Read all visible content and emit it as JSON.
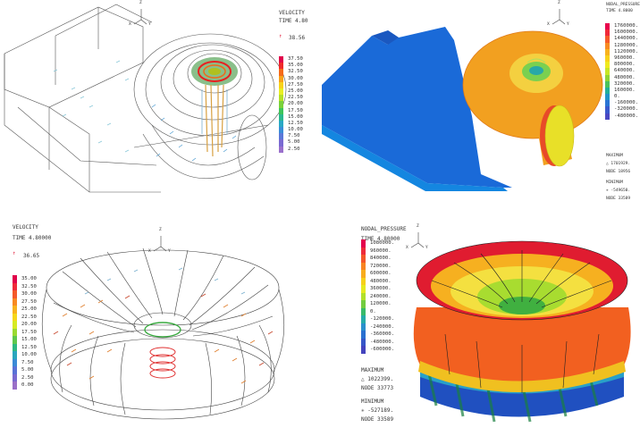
{
  "panels": {
    "velocity_top": {
      "title": "VELOCITY",
      "time": "TIME 4.80",
      "max_marker": "38.56",
      "legend": [
        "37.50",
        "35.00",
        "32.50",
        "30.00",
        "27.50",
        "25.00",
        "22.50",
        "20.00",
        "17.50",
        "15.00",
        "12.50",
        "10.00",
        "7.50",
        "5.00",
        "2.50"
      ],
      "legend_colors": [
        "#e0004a",
        "#ef2a2a",
        "#f56a1a",
        "#f8a21a",
        "#f8d21a",
        "#e8ee22",
        "#b6e026",
        "#7ad23a",
        "#3ec45a",
        "#2ab88e",
        "#2aa8c4",
        "#3a8ed8",
        "#5a78d8",
        "#7a6ad2",
        "#9a70cc"
      ]
    },
    "pressure_top": {
      "title": "NODAL_PRESSURE",
      "time": "TIME 4.8000",
      "legend": [
        "1760000.",
        "1600000.",
        "1440000.",
        "1280000.",
        "1120000.",
        "960000.",
        "800000.",
        "640000.",
        "480000.",
        "320000.",
        "160000.",
        "0.",
        "-160000.",
        "-320000.",
        "-480000."
      ],
      "legend_colors": [
        "#e8004c",
        "#f02a3a",
        "#f65a2a",
        "#f88a22",
        "#f8b21e",
        "#f8d21a",
        "#f0ea20",
        "#c8e626",
        "#8ed436",
        "#4cc25c",
        "#22b09a",
        "#2294c8",
        "#2a74d4",
        "#3a58cc",
        "#4a48c2"
      ],
      "maximum_label": "MAXIMUM",
      "maximum_value": "△  1701929.",
      "maximum_node": "NODE 18956",
      "minimum_label": "MINIMUM",
      "minimum_value": "✳ -549650.",
      "minimum_node": "NODE 33589"
    },
    "velocity_bottom": {
      "title": "VELOCITY",
      "time": "TIME 4.80000",
      "max_marker": "36.65",
      "legend": [
        "35.00",
        "32.50",
        "30.00",
        "27.50",
        "25.00",
        "22.50",
        "20.00",
        "17.50",
        "15.00",
        "12.50",
        "10.00",
        "7.50",
        "5.00",
        "2.50",
        "0.00"
      ],
      "legend_colors": [
        "#e0004a",
        "#ef2a3a",
        "#f45a2a",
        "#f88a22",
        "#f8b21e",
        "#f6d61a",
        "#d6ea22",
        "#9ada30",
        "#5ec84c",
        "#2eb882",
        "#2aa6be",
        "#3a8ad6",
        "#5a72d6",
        "#7a6ad0",
        "#9a70c8"
      ]
    },
    "pressure_bottom": {
      "title": "NODAL_PRESSURE",
      "time": "TIME 4.80000",
      "legend": [
        "1080000.",
        "960000.",
        "840000.",
        "720000.",
        "600000.",
        "480000.",
        "360000.",
        "240000.",
        "120000.",
        "0.",
        "-120000.",
        "-240000.",
        "-360000.",
        "-480000.",
        "-600000."
      ],
      "legend_colors": [
        "#e4004c",
        "#ee2a3a",
        "#f4562a",
        "#f88422",
        "#f8ac1e",
        "#f6d01a",
        "#e6ea20",
        "#b2e02a",
        "#72cc40",
        "#38ba6a",
        "#26aca8",
        "#2a90cc",
        "#2a70d0",
        "#3656c8",
        "#4444be"
      ],
      "maximum_label": "MAXIMUM",
      "maximum_value": "△  1022399.",
      "maximum_node": "NODE 33773",
      "minimum_label": "MINIMUM",
      "minimum_value": "✳ -527189.",
      "minimum_node": "NODE 33589"
    }
  },
  "axis_letters": {
    "z": "Z",
    "x": "X",
    "y": "Y"
  },
  "icons": {
    "triad": "xyz-triad-icon",
    "max_arrow": "red-arrow-icon"
  }
}
